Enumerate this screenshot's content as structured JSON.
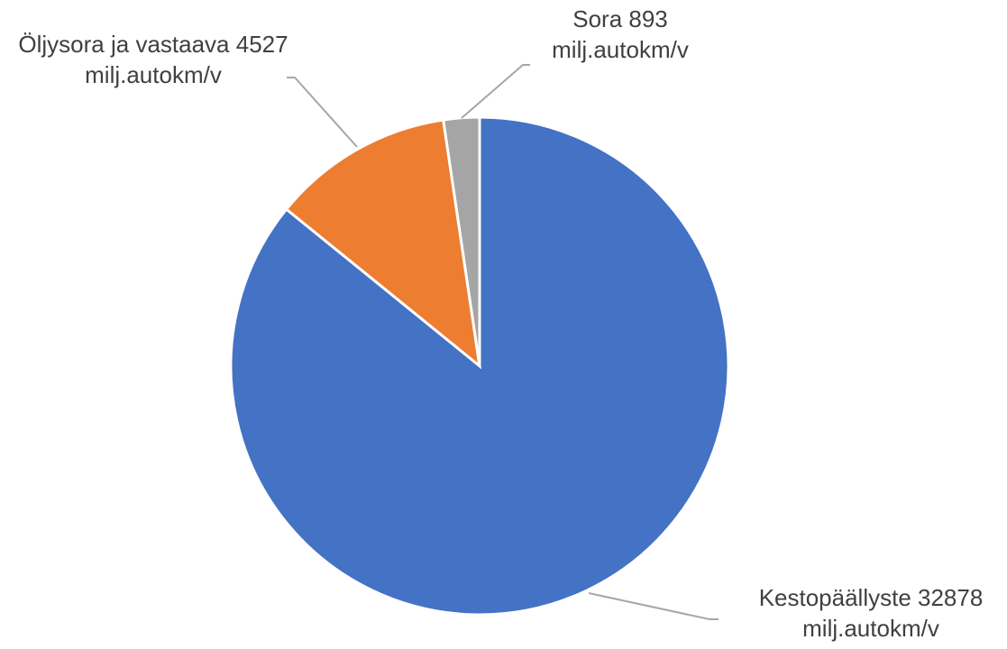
{
  "chart_data": {
    "type": "pie",
    "unit": "milj.autokm/v",
    "start_angle_deg": 0,
    "direction": "clockwise",
    "slices": [
      {
        "name": "Kestopäällyste",
        "value": 32878,
        "color": "#4472C4",
        "label_lines": [
          "Kestopäällyste 32878",
          "milj.autokm/v"
        ]
      },
      {
        "name": "Öljysora ja vastaava",
        "value": 4527,
        "color": "#ED7D31",
        "label_lines": [
          "Öljysora ja vastaava 4527",
          "milj.autokm/v"
        ]
      },
      {
        "name": "Sora",
        "value": 893,
        "color": "#A5A5A5",
        "label_lines": [
          "Sora 893",
          "milj.autokm/v"
        ]
      }
    ]
  }
}
